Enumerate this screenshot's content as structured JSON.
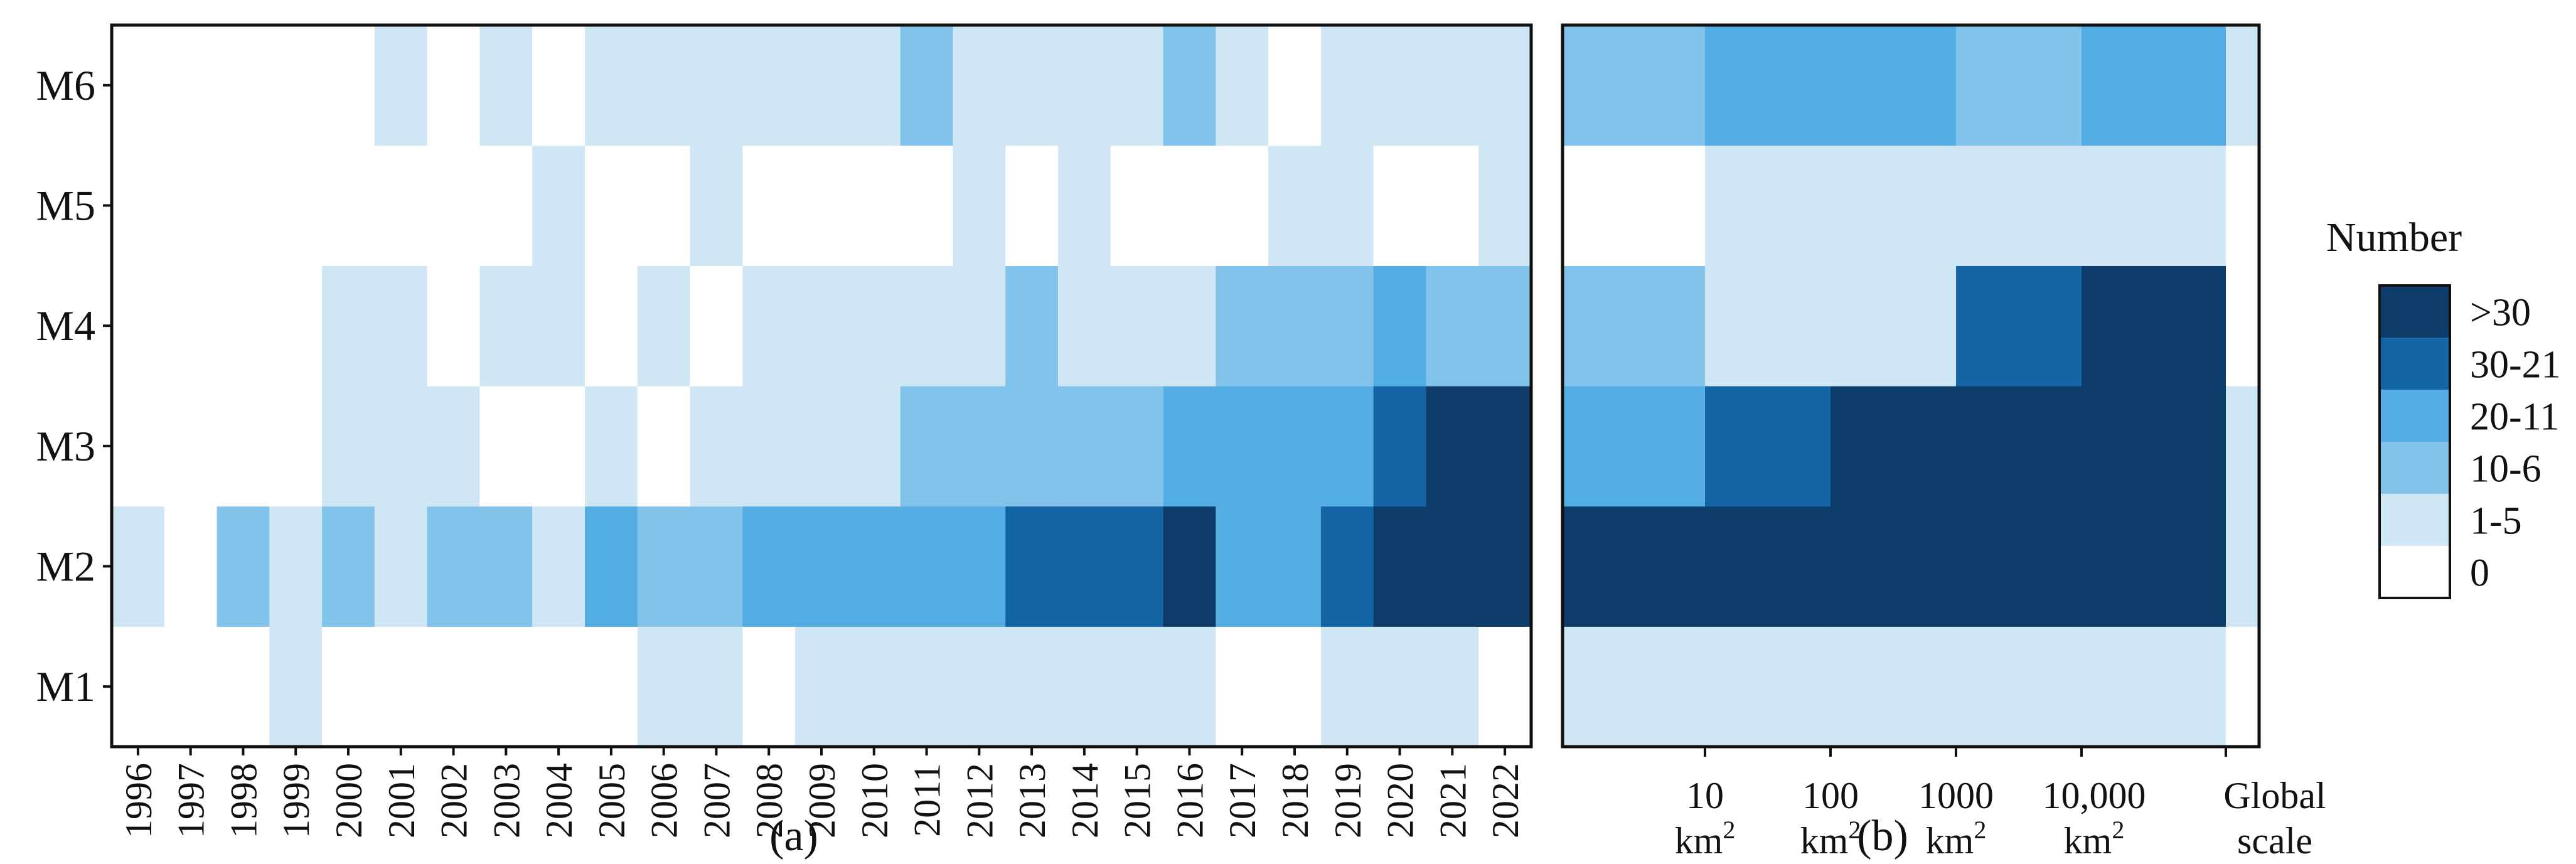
{
  "legend": {
    "title": "Number",
    "entries": [
      ">30",
      "30-21",
      "20-11",
      "10-6",
      "1-5",
      "0"
    ],
    "colors": [
      "#0e3d6b",
      "#1465a6",
      "#55aee3",
      "#82c3ec",
      "#cfe6f4",
      "#ffffff"
    ]
  },
  "captions": {
    "a": "(a)",
    "b": "(b)"
  },
  "chart_data": [
    {
      "type": "heatmap",
      "panel": "(a)",
      "rows": [
        "M1",
        "M2",
        "M3",
        "M4",
        "M5",
        "M6"
      ],
      "columns": [
        "1996",
        "1997",
        "1998",
        "1999",
        "2000",
        "2001",
        "2002",
        "2003",
        "2004",
        "2005",
        "2006",
        "2007",
        "2008",
        "2009",
        "2010",
        "2011",
        "2012",
        "2013",
        "2014",
        "2015",
        "2016",
        "2017",
        "2018",
        "2019",
        "2020",
        "2021",
        "2022"
      ],
      "value_scale": "category index: 0 = 0, 1 = 1-5, 2 = 10-6, 3 = 20-11, 4 = 30-21, 5 = >30",
      "values": [
        [
          0,
          0,
          0,
          1,
          0,
          0,
          0,
          0,
          0,
          0,
          1,
          1,
          0,
          1,
          1,
          1,
          1,
          1,
          1,
          1,
          1,
          0,
          0,
          1,
          1,
          1,
          0
        ],
        [
          1,
          0,
          2,
          1,
          2,
          1,
          2,
          2,
          1,
          3,
          2,
          2,
          3,
          3,
          3,
          3,
          3,
          4,
          4,
          4,
          5,
          3,
          3,
          4,
          5,
          5,
          5
        ],
        [
          0,
          0,
          0,
          0,
          1,
          1,
          1,
          0,
          0,
          1,
          0,
          1,
          1,
          1,
          1,
          2,
          2,
          2,
          2,
          2,
          3,
          3,
          3,
          3,
          4,
          5,
          5
        ],
        [
          0,
          0,
          0,
          0,
          1,
          1,
          0,
          1,
          1,
          0,
          1,
          0,
          1,
          1,
          1,
          1,
          1,
          2,
          1,
          1,
          1,
          2,
          2,
          2,
          3,
          2,
          2
        ],
        [
          0,
          0,
          0,
          0,
          0,
          0,
          0,
          0,
          1,
          0,
          0,
          1,
          0,
          0,
          0,
          0,
          1,
          0,
          1,
          0,
          0,
          0,
          1,
          1,
          0,
          0,
          1
        ],
        [
          0,
          0,
          0,
          0,
          0,
          1,
          0,
          1,
          0,
          1,
          1,
          1,
          1,
          1,
          1,
          2,
          1,
          1,
          1,
          1,
          2,
          1,
          0,
          1,
          1,
          1,
          1
        ]
      ]
    },
    {
      "type": "heatmap",
      "panel": "(b)",
      "rows": [
        "M1",
        "M2",
        "M3",
        "M4",
        "M5",
        "M6"
      ],
      "columns": [
        "10 km²",
        "100 km²",
        "1000 km²",
        "10,000 km²",
        "",
        "Global scale"
      ],
      "column_labels": [
        {
          "line1": "10",
          "line2": "km",
          "sup": "2"
        },
        {
          "line1": "100",
          "line2": "km",
          "sup": "2"
        },
        {
          "line1": "1000",
          "line2": "km",
          "sup": "2"
        },
        {
          "line1": "10,000",
          "line2": "km",
          "sup": "2"
        },
        {
          "line1": "Global",
          "line2": "scale",
          "sup": ""
        }
      ],
      "value_scale": "category index: 0 = 0, 1 = 1-5, 2 = 10-6, 3 = 20-11, 4 = 30-21, 5 = >30",
      "values": [
        [
          1,
          1,
          1,
          1,
          1,
          0
        ],
        [
          5,
          5,
          5,
          5,
          5,
          1
        ],
        [
          3,
          4,
          5,
          5,
          5,
          1
        ],
        [
          2,
          1,
          1,
          4,
          5,
          0
        ],
        [
          0,
          1,
          1,
          1,
          1,
          0
        ],
        [
          2,
          3,
          3,
          2,
          3,
          1
        ]
      ]
    }
  ]
}
